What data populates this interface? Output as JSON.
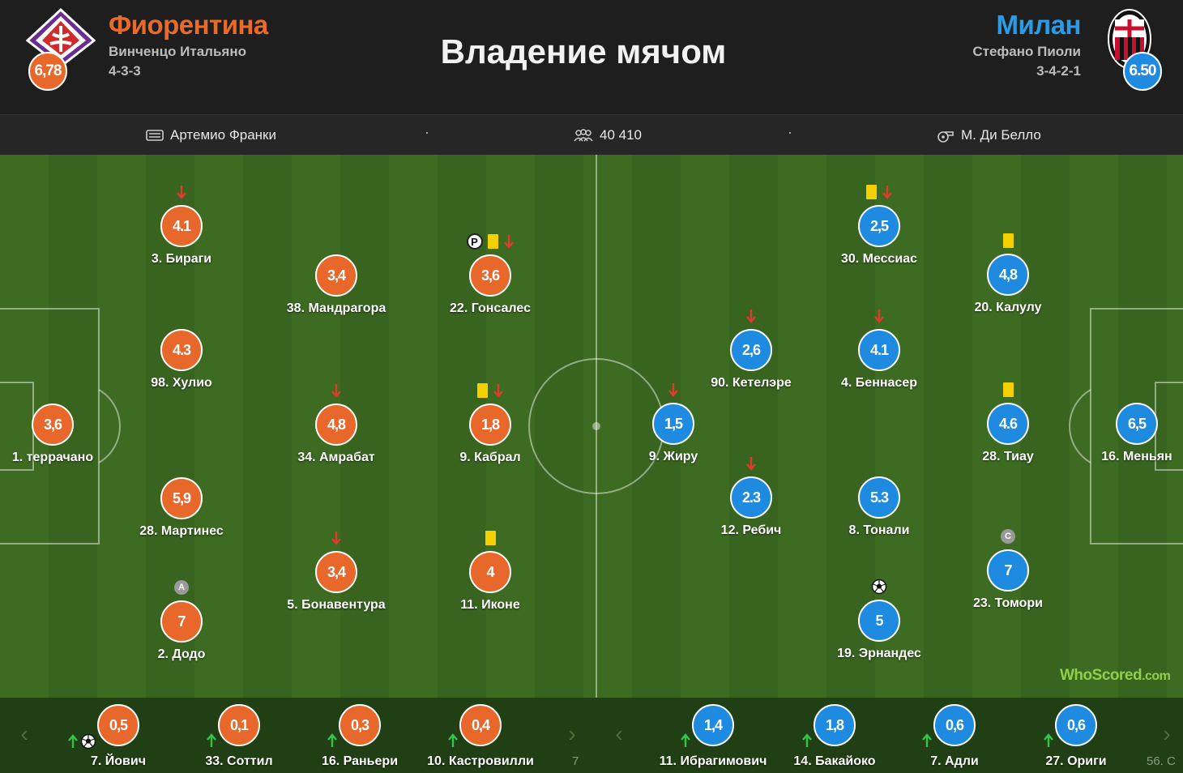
{
  "header": {
    "title": "Владение мячом",
    "home": {
      "name": "Фиорентина",
      "coach": "Винченцо Итальяно",
      "formation": "4-3-3",
      "rating": "6,78",
      "crest": "fiorentina-crest"
    },
    "away": {
      "name": "Милан",
      "coach": "Стефано Пиоли",
      "formation": "3-4-2-1",
      "rating": "6.50",
      "crest": "milan-crest"
    }
  },
  "info": {
    "stadium": "Артемио Франки",
    "attendance": "40 410",
    "referee": "М. Ди Белло",
    "separator": "·"
  },
  "colors": {
    "home": "#e8672b",
    "away": "#1e8be0",
    "yellow_card": "#f4d000",
    "sub_off": "#e03b2b",
    "sub_on": "#33c44b"
  },
  "pitch": {
    "home_players": [
      {
        "rating": "3,6",
        "name": "1. террачано",
        "badges": []
      },
      {
        "rating": "4.1",
        "name": "3. Бираги",
        "badges": [
          "sub-off"
        ]
      },
      {
        "rating": "4.3",
        "name": "98. Хулио",
        "badges": []
      },
      {
        "rating": "5,9",
        "name": "28. Мартинес",
        "badges": []
      },
      {
        "rating": "7",
        "name": "2. Додо",
        "badges": [
          "A"
        ]
      },
      {
        "rating": "3,4",
        "name": "38. Мандрагора",
        "badges": []
      },
      {
        "rating": "4,8",
        "name": "34. Амрабат",
        "badges": [
          "sub-off"
        ]
      },
      {
        "rating": "3,4",
        "name": "5. Бонавентура",
        "badges": [
          "sub-off"
        ]
      },
      {
        "rating": "3,6",
        "name": "22. Гонсалес",
        "badges": [
          "P",
          "yellow-card",
          "sub-off"
        ]
      },
      {
        "rating": "1,8",
        "name": "9. Кабрал",
        "badges": [
          "yellow-card",
          "sub-off"
        ]
      },
      {
        "rating": "4",
        "name": "11. Иконе",
        "badges": [
          "yellow-card"
        ]
      }
    ],
    "away_players": [
      {
        "rating": "1,5",
        "name": "9. Жиру",
        "badges": [
          "sub-off"
        ]
      },
      {
        "rating": "2,6",
        "name": "90. Кетелэре",
        "badges": [
          "sub-off"
        ]
      },
      {
        "rating": "2.3",
        "name": "12. Ребич",
        "badges": [
          "sub-off"
        ]
      },
      {
        "rating": "2,5",
        "name": "30. Мессиас",
        "badges": [
          "yellow-card",
          "sub-off"
        ]
      },
      {
        "rating": "4.1",
        "name": "4. Беннасер",
        "badges": [
          "sub-off"
        ]
      },
      {
        "rating": "5.3",
        "name": "8. Тонали",
        "badges": []
      },
      {
        "rating": "5",
        "name": "19. Эрнандес",
        "badges": [
          "goal"
        ]
      },
      {
        "rating": "4,8",
        "name": "20. Калулу",
        "badges": [
          "yellow-card"
        ]
      },
      {
        "rating": "4.6",
        "name": "28. Тиау",
        "badges": [
          "yellow-card"
        ]
      },
      {
        "rating": "7",
        "name": "23. Томори",
        "badges": [
          "C"
        ]
      },
      {
        "rating": "6,5",
        "name": "16. Меньян",
        "badges": []
      }
    ],
    "watermark": {
      "brand": "WhoScored",
      "suffix": ".com"
    }
  },
  "bench": {
    "home": [
      {
        "rating": "0,5",
        "name": "7. Йович",
        "icons": [
          "sub-on",
          "goal"
        ]
      },
      {
        "rating": "0,1",
        "name": "33. Соттил",
        "icons": [
          "sub-on"
        ]
      },
      {
        "rating": "0,3",
        "name": "16. Раньери",
        "icons": [
          "sub-on"
        ]
      },
      {
        "rating": "0,4",
        "name": "10. Кастровилли",
        "icons": [
          "sub-on"
        ]
      }
    ],
    "home_more": "7",
    "away": [
      {
        "rating": "1,4",
        "name": "11. Ибрагимович",
        "icons": [
          "sub-on"
        ]
      },
      {
        "rating": "1,8",
        "name": "14. Бакайоко",
        "icons": [
          "sub-on"
        ]
      },
      {
        "rating": "0,6",
        "name": "7. Адли",
        "icons": [
          "sub-on"
        ]
      },
      {
        "rating": "0,6",
        "name": "27. Ориги",
        "icons": [
          "sub-on"
        ]
      }
    ],
    "away_more": "56. С",
    "prev_label": "‹",
    "next_label": "›"
  }
}
